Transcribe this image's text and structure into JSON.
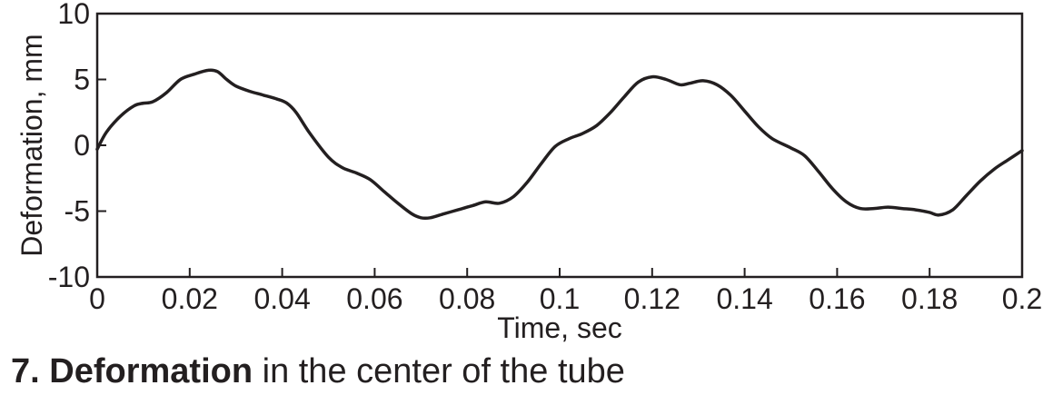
{
  "chart_data": {
    "type": "line",
    "xlabel": "Time, sec",
    "ylabel": "Deformation, mm",
    "xlim": [
      0,
      0.2
    ],
    "ylim": [
      -10,
      10
    ],
    "x_ticks": [
      "0",
      "0.02",
      "0.04",
      "0.06",
      "0.08",
      "0.1",
      "0.12",
      "0.14",
      "0.16",
      "0.18",
      "0.2"
    ],
    "y_ticks": [
      "10",
      "5",
      "0",
      "-5",
      "-10"
    ],
    "grid": false,
    "legend": "none",
    "line_color": "#231f20",
    "series": [
      {
        "x": [
          0,
          0.002,
          0.005,
          0.008,
          0.01,
          0.012,
          0.015,
          0.018,
          0.021,
          0.024,
          0.026,
          0.028,
          0.03,
          0.033,
          0.036,
          0.039,
          0.041,
          0.043,
          0.046,
          0.05,
          0.053,
          0.056,
          0.059,
          0.062,
          0.065,
          0.068,
          0.07,
          0.072,
          0.075,
          0.078,
          0.081,
          0.084,
          0.087,
          0.09,
          0.093,
          0.096,
          0.099,
          0.102,
          0.105,
          0.108,
          0.111,
          0.114,
          0.117,
          0.12,
          0.123,
          0.126,
          0.128,
          0.131,
          0.134,
          0.137,
          0.14,
          0.143,
          0.146,
          0.15,
          0.153,
          0.156,
          0.159,
          0.162,
          0.165,
          0.168,
          0.171,
          0.174,
          0.177,
          0.18,
          0.182,
          0.185,
          0.188,
          0.191,
          0.194,
          0.197,
          0.2
        ],
        "y": [
          -0.3,
          1.0,
          2.2,
          3.0,
          3.2,
          3.3,
          4.0,
          5.0,
          5.4,
          5.7,
          5.6,
          5.0,
          4.5,
          4.1,
          3.8,
          3.5,
          3.2,
          2.5,
          0.9,
          -0.9,
          -1.7,
          -2.1,
          -2.6,
          -3.5,
          -4.4,
          -5.2,
          -5.5,
          -5.5,
          -5.2,
          -4.9,
          -4.6,
          -4.3,
          -4.4,
          -3.9,
          -2.8,
          -1.4,
          -0.1,
          0.5,
          0.9,
          1.5,
          2.5,
          3.7,
          4.8,
          5.2,
          5.0,
          4.6,
          4.7,
          4.9,
          4.6,
          3.8,
          2.6,
          1.4,
          0.5,
          -0.2,
          -0.8,
          -2.0,
          -3.3,
          -4.3,
          -4.8,
          -4.8,
          -4.7,
          -4.8,
          -4.9,
          -5.1,
          -5.3,
          -4.9,
          -3.8,
          -2.7,
          -1.8,
          -1.1,
          -0.4
        ]
      }
    ]
  },
  "caption": {
    "number": "7.",
    "bold_text": "Deformation",
    "rest_text": " in the center of the tube"
  }
}
